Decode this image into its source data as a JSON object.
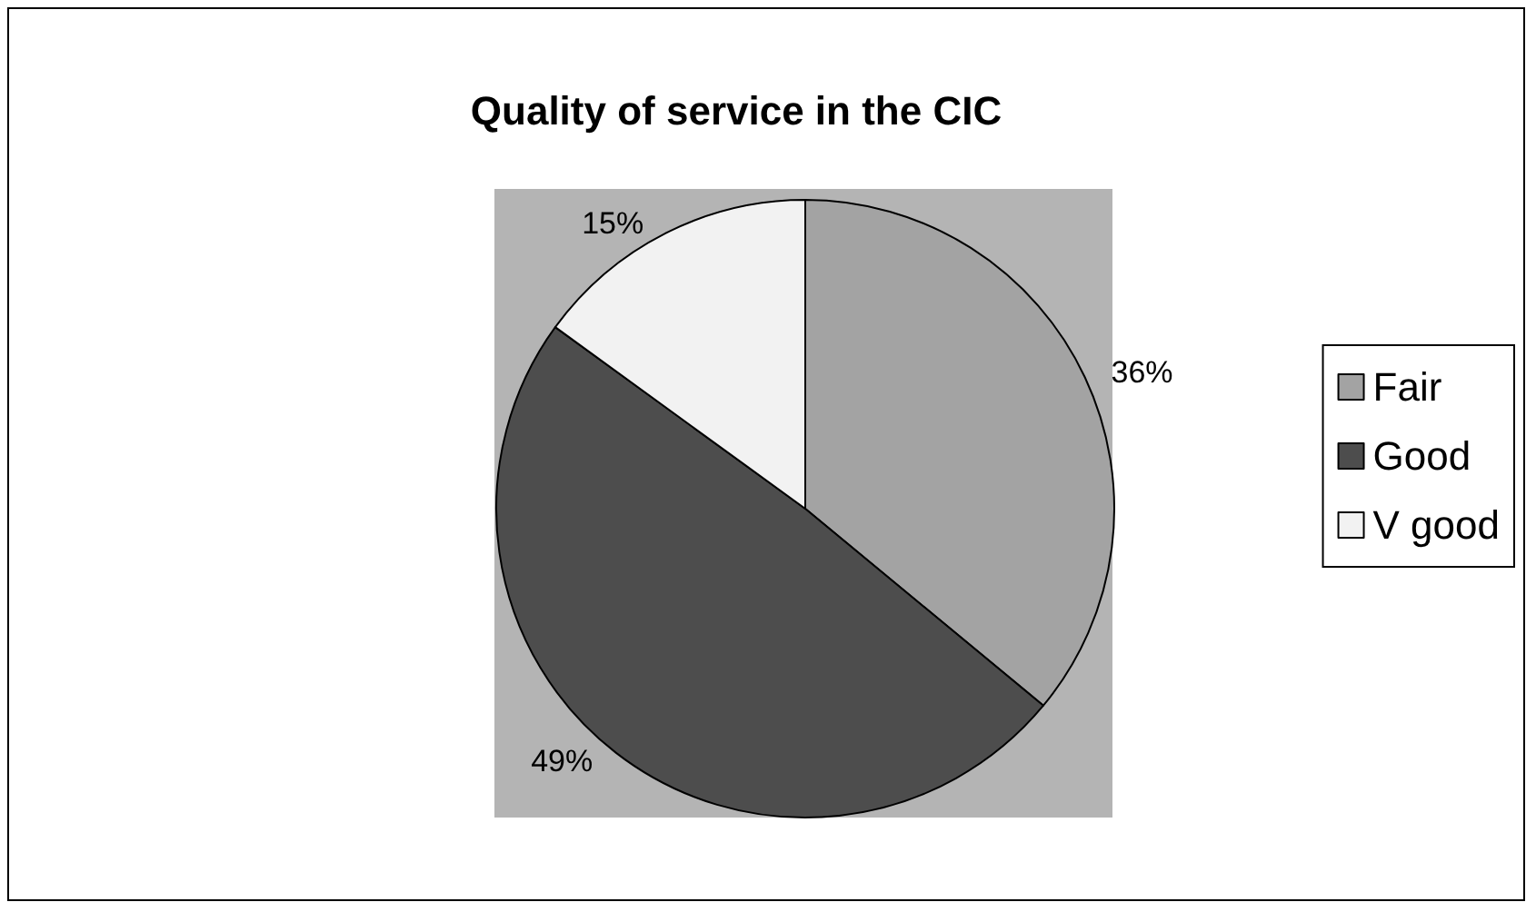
{
  "chart_data": {
    "type": "pie",
    "title": "Quality of service in the CIC",
    "categories": [
      "Fair",
      "Good",
      "V good"
    ],
    "values": [
      36,
      49,
      15
    ],
    "colors": [
      "#a3a3a3",
      "#4d4d4d",
      "#f2f2f2"
    ],
    "value_labels": [
      "36%",
      "49%",
      "15%"
    ],
    "legend": "right"
  }
}
